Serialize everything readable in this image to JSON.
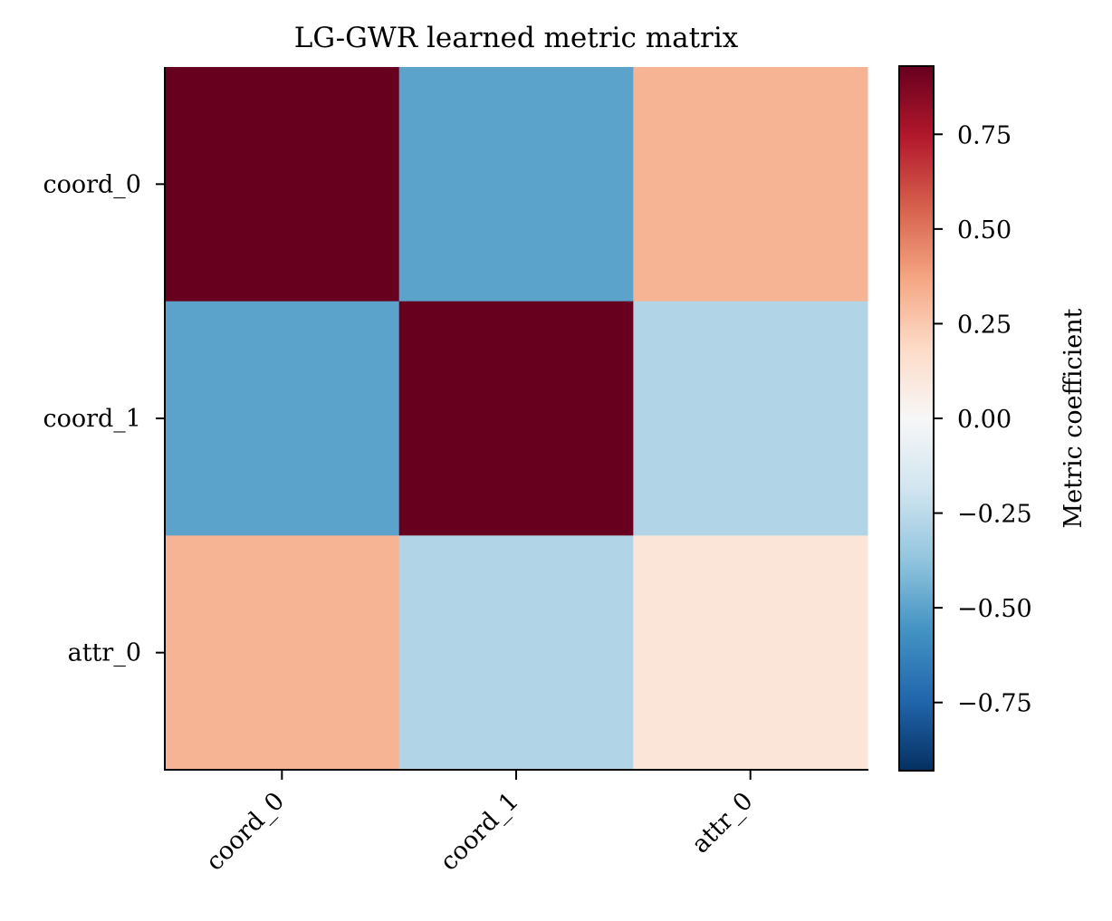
{
  "chart_data": {
    "type": "heatmap",
    "title": "LG-GWR learned metric matrix",
    "rows": [
      "coord_0",
      "coord_1",
      "attr_0"
    ],
    "columns": [
      "coord_0",
      "coord_1",
      "attr_0"
    ],
    "values": [
      [
        0.93,
        -0.5,
        0.32
      ],
      [
        -0.5,
        0.93,
        -0.28
      ],
      [
        0.32,
        -0.28,
        0.12
      ]
    ],
    "colormap": "RdBu_r",
    "vmin": -0.93,
    "vmax": 0.93,
    "colorbar": {
      "label": "Metric coefficient",
      "ticks": [
        0.75,
        0.5,
        0.25,
        0.0,
        -0.25,
        -0.5,
        -0.75
      ],
      "tick_labels": [
        "0.75",
        "0.50",
        "0.25",
        "0.00",
        "−0.25",
        "−0.50",
        "−0.75"
      ]
    }
  }
}
